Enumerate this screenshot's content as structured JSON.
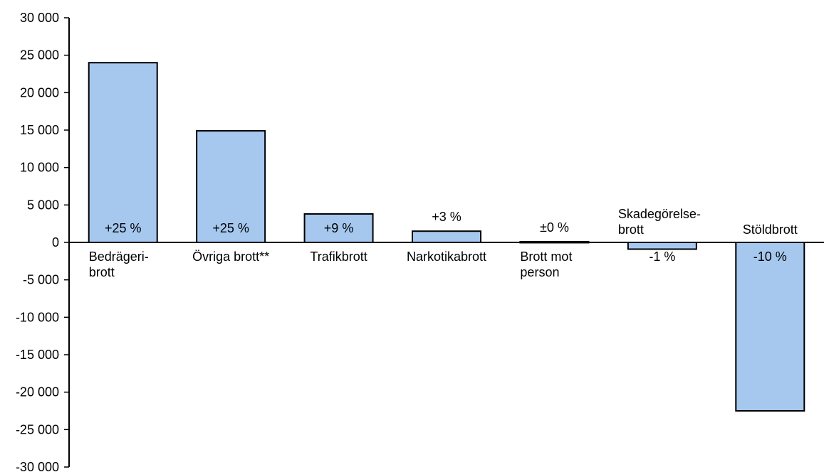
{
  "chart_data": {
    "type": "bar",
    "title": "",
    "xlabel": "",
    "ylabel": "",
    "ylim": [
      -30000,
      30000
    ],
    "y_ticks": [
      30000,
      25000,
      20000,
      15000,
      10000,
      5000,
      0,
      -5000,
      -10000,
      -15000,
      -20000,
      -25000,
      -30000
    ],
    "y_tick_labels": [
      "30 000",
      "25 000",
      "20 000",
      "15 000",
      "10 000",
      "5 000",
      "0",
      "-5 000",
      "-10 000",
      "-15 000",
      "-20 000",
      "-25 000",
      "-30 000"
    ],
    "grid": false,
    "legend": "none",
    "bar_color": "#a6c8ef",
    "categories": [
      [
        "Bedrägeri-",
        "brott"
      ],
      [
        "Övriga brott**"
      ],
      [
        "Trafikbrott"
      ],
      [
        "Narkotikabrott"
      ],
      [
        "Brott mot",
        "person"
      ],
      [
        "Skadegörelse-",
        "brott"
      ],
      [
        "Stöldbrott"
      ]
    ],
    "values": [
      24000,
      14900,
      3800,
      1500,
      100,
      -900,
      -22500
    ],
    "data_labels": [
      "+25 %",
      "+25 %",
      "+9 %",
      "+3 %",
      "±0 %",
      "-1 %",
      "-10 %"
    ]
  }
}
